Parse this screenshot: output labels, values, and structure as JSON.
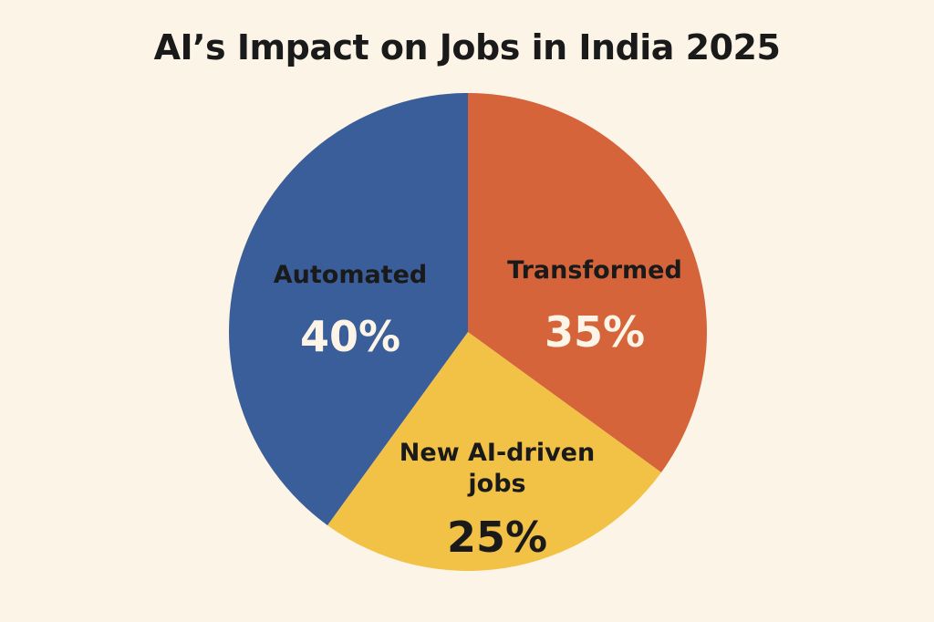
{
  "chart_data": {
    "type": "pie",
    "title": "AI’s Impact on Jobs in India 2025",
    "slices": [
      {
        "label": "Transformed",
        "label_lines": [
          "Transformed"
        ],
        "value": 35,
        "value_label": "35%",
        "color": "#d5643a",
        "value_color": "#fcf4e6"
      },
      {
        "label": "New AI-driven jobs",
        "label_lines": [
          "New AI-driven",
          "jobs"
        ],
        "value": 25,
        "value_label": "25%",
        "color": "#f2c246",
        "value_color": "#1a1a1a"
      },
      {
        "label": "Automated",
        "label_lines": [
          "Automated"
        ],
        "value": 40,
        "value_label": "40%",
        "color": "#3a5e9a",
        "value_color": "#fcf4e6"
      }
    ],
    "start_angle": "top, clockwise",
    "legend": "none",
    "background": "#fcf4e6"
  }
}
